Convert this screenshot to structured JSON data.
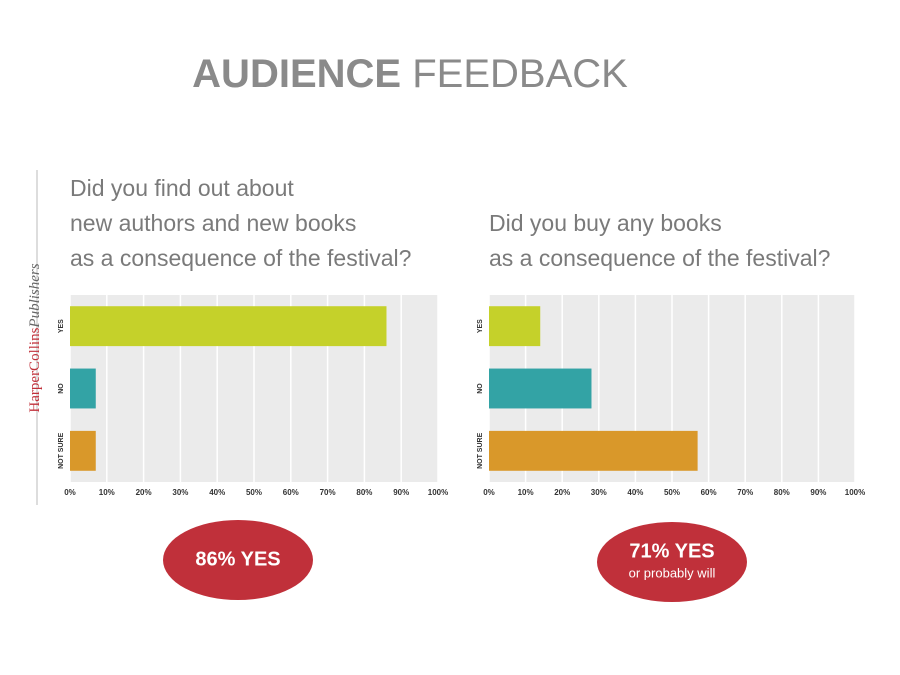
{
  "header": {
    "title_bold": "AUDIENCE",
    "title_light": "FEEDBACK",
    "logo_main": "HarperCollins",
    "logo_sub": "Publishers"
  },
  "chart_data": [
    {
      "type": "bar",
      "orientation": "horizontal",
      "title": [
        "Did you find out about",
        "new authors and new books",
        "as a consequence of the festival?"
      ],
      "categories": [
        "YES",
        "NO",
        "NOT SURE"
      ],
      "values": [
        86,
        7,
        7
      ],
      "colors": [
        "#c5d12a",
        "#33a3a5",
        "#d9982a"
      ],
      "xlim": [
        0,
        100
      ],
      "xticks": [
        {
          "value": 0,
          "label": "0%"
        },
        {
          "value": 10,
          "label": "10%"
        },
        {
          "value": 20,
          "label": "20%"
        },
        {
          "value": 30,
          "label": "30%"
        },
        {
          "value": 40,
          "label": "40%"
        },
        {
          "value": 50,
          "label": "50%"
        },
        {
          "value": 60,
          "label": "60%"
        },
        {
          "value": 70,
          "label": "70%"
        },
        {
          "value": 80,
          "label": "80%"
        },
        {
          "value": 90,
          "label": "90%"
        },
        {
          "value": 100,
          "label": "100%"
        }
      ],
      "grid": true,
      "annotation": "86% YES"
    },
    {
      "type": "bar",
      "orientation": "horizontal",
      "title": [
        "Did you buy any books",
        "as a consequence of the festival?"
      ],
      "categories": [
        "YES",
        "NO",
        "NOT SURE"
      ],
      "values": [
        14,
        28,
        57
      ],
      "colors": [
        "#c5d12a",
        "#33a3a5",
        "#d9982a"
      ],
      "xlim": [
        0,
        100
      ],
      "xticks": [
        {
          "value": 0,
          "label": "0%"
        },
        {
          "value": 10,
          "label": "10%"
        },
        {
          "value": 20,
          "label": "20%"
        },
        {
          "value": 30,
          "label": "30%"
        },
        {
          "value": 40,
          "label": "40%"
        },
        {
          "value": 50,
          "label": "50%"
        },
        {
          "value": 60,
          "label": "60%"
        },
        {
          "value": 70,
          "label": "70%"
        },
        {
          "value": 80,
          "label": "80%"
        },
        {
          "value": 90,
          "label": "90%"
        },
        {
          "value": 100,
          "label": "100%"
        }
      ],
      "grid": true,
      "annotation": "71% YES",
      "annotation_note": "or probably will"
    }
  ]
}
